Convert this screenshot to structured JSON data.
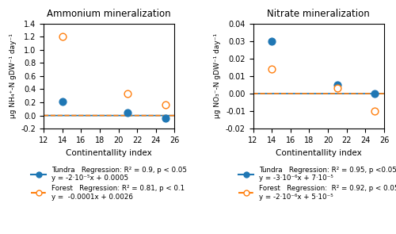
{
  "chart_data": [
    {
      "type": "scatter",
      "title": "Ammonium mineralization",
      "x_label": "Continentallity index",
      "y_label": "μg NH₄⁺-N gDW⁻¹ day⁻¹",
      "xlim": [
        12,
        26
      ],
      "xticks": [
        12,
        14,
        16,
        18,
        20,
        22,
        24,
        26
      ],
      "ylim": [
        -0.2,
        1.4
      ],
      "yticks": [
        -0.2,
        0.0,
        0.2,
        0.4,
        0.6,
        0.8,
        1.0,
        1.2,
        1.4
      ],
      "x": [
        14,
        21,
        25
      ],
      "legend": "bottom",
      "series": [
        {
          "name": "Tundra",
          "marker": "filled",
          "line_style": "solid",
          "values": [
            0.21,
            0.05,
            -0.04
          ],
          "slope": -2e-05,
          "intercept": 0.0005,
          "annotation": "Regression: R² = 0.9, p < 0.05",
          "equation": "y = -2·10⁻⁵x + 0.0005"
        },
        {
          "name": "Forest",
          "marker": "open",
          "line_style": "dashed",
          "values": [
            1.2,
            0.33,
            0.17
          ],
          "slope": -0.0001,
          "intercept": 0.0026,
          "annotation": "Regression: R² = 0.81, p < 0.1",
          "equation": "y =  -0.0001x + 0.0026"
        }
      ]
    },
    {
      "type": "scatter",
      "title": "Nitrate mineralization",
      "x_label": "Continentallity index",
      "y_label": "μg NO₃⁻-N gDW⁻¹ day⁻¹",
      "xlim": [
        12,
        26
      ],
      "xticks": [
        12,
        14,
        16,
        18,
        20,
        22,
        24,
        26
      ],
      "ylim": [
        -0.02,
        0.04
      ],
      "yticks": [
        -0.02,
        -0.01,
        {
          "value": 0.0,
          "label": "0.00"
        },
        0.01,
        0.02,
        0.03,
        0.04
      ],
      "x": [
        14,
        21,
        25
      ],
      "legend": "bottom",
      "series": [
        {
          "name": "Tundra",
          "marker": "filled",
          "line_style": "solid",
          "values": [
            0.03,
            0.005,
            0.0
          ],
          "slope": -3e-06,
          "intercept": 7e-05,
          "annotation": "Regression: R² = 0.95, p <0.05",
          "equation": "y = -3·10⁻⁶x + 7·10⁻⁵"
        },
        {
          "name": "Forest",
          "marker": "open",
          "line_style": "dashed",
          "values": [
            0.014,
            0.003,
            -0.01
          ],
          "slope": -2e-06,
          "intercept": 5e-05,
          "annotation": "Regression:  R² = 0.92, p < 0.05",
          "equation": "y = -2·10⁻⁶x + 5·10⁻⁵"
        }
      ]
    }
  ]
}
